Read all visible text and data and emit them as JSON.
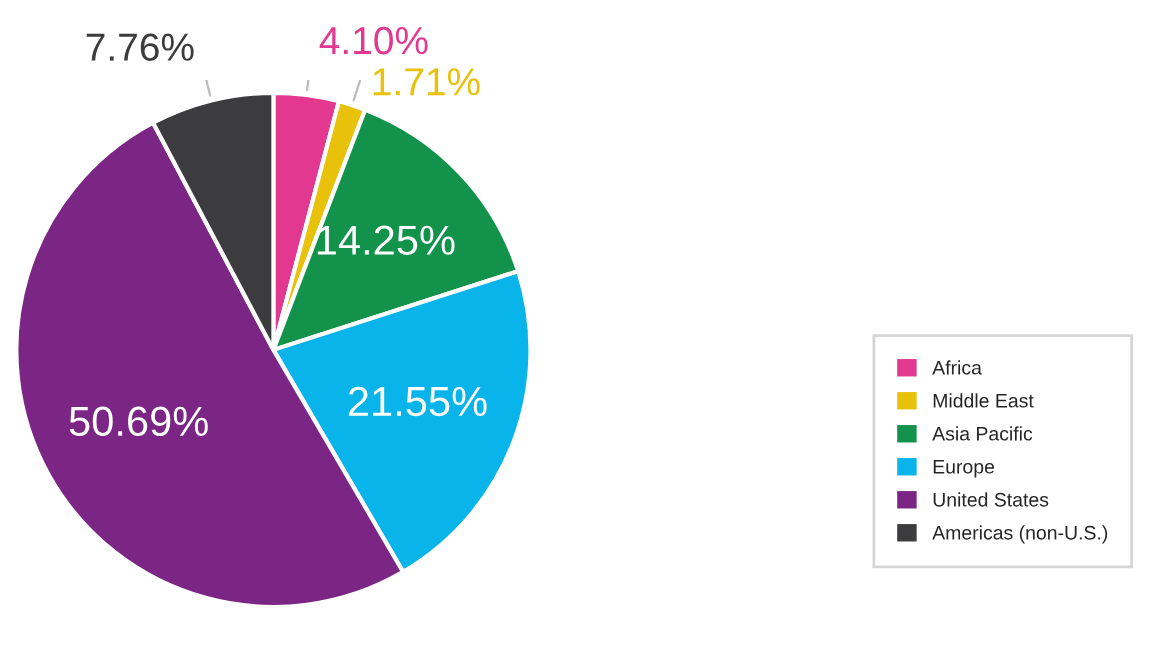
{
  "chart_data": {
    "type": "pie",
    "categories": [
      "Africa",
      "Middle East",
      "Asia Pacific",
      "Europe",
      "United States",
      "Americas (non-U.S.)"
    ],
    "values": [
      4.1,
      1.71,
      14.25,
      21.55,
      50.69,
      7.76
    ],
    "value_labels": [
      "4.10%",
      "1.71%",
      "14.25%",
      "21.55%",
      "50.69%",
      "7.76%"
    ],
    "colors": [
      "#e2388f",
      "#e8c10a",
      "#12924a",
      "#08b4ea",
      "#7b2584",
      "#3c3b3d"
    ],
    "legend": "right"
  }
}
